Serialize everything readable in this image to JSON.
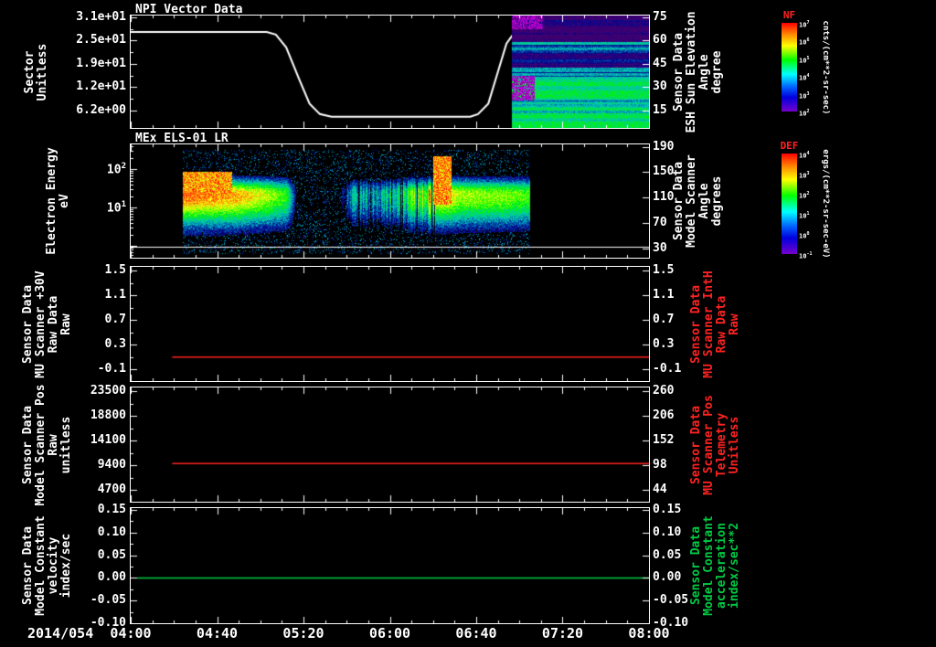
{
  "x_axis": {
    "date_label": "2014/054",
    "tick_labels": [
      "04:00",
      "04:40",
      "05:20",
      "06:00",
      "06:40",
      "07:20",
      "08:00"
    ],
    "range_hours": [
      4.0,
      8.0
    ]
  },
  "colorbars": [
    {
      "name": "NF",
      "title_color": "#ff2222",
      "units": "cnts/(cm**2-sr-sec)",
      "tick_labels": [
        "10^7",
        "10^6",
        "10^5",
        "10^4",
        "10^3",
        "10^2"
      ]
    },
    {
      "name": "DEF",
      "title_color": "#ff2222",
      "units": "ergs/(cm**2-sr-sec-eV)",
      "tick_labels": [
        "10^4",
        "10^3",
        "10^2",
        "10^1",
        "10^0",
        "10^-1"
      ]
    }
  ],
  "chart_data": [
    {
      "id": "npi-sector",
      "type": "line+spectrogram",
      "title": "NPI Vector Data",
      "left_label": [
        "Sector",
        "Unitless"
      ],
      "left_axis": {
        "range": [
          1.5,
          31.5
        ],
        "ticks": [
          {
            "v": 31.0,
            "label": "3.1e+01"
          },
          {
            "v": 24.8,
            "label": "2.5e+01"
          },
          {
            "v": 18.6,
            "label": "1.9e+01"
          },
          {
            "v": 12.4,
            "label": "1.2e+01"
          },
          {
            "v": 6.2,
            "label": "6.2e+00"
          }
        ]
      },
      "right_label": [
        "Sensor Data",
        "ESH Sun Elevation",
        "Angle",
        "degree"
      ],
      "right_label_color": "#ffffff",
      "right_axis": {
        "range": [
          3.6,
          76.2
        ],
        "ticks": [
          {
            "v": 75,
            "label": "75"
          },
          {
            "v": 60,
            "label": "60"
          },
          {
            "v": 45,
            "label": "45"
          },
          {
            "v": 30,
            "label": "30"
          },
          {
            "v": 15,
            "label": "15"
          }
        ]
      },
      "line": {
        "color": "#ffffff",
        "points": [
          [
            4.0,
            27.1
          ],
          [
            5.05,
            27.1
          ],
          [
            5.12,
            26.4
          ],
          [
            5.2,
            23.0
          ],
          [
            5.3,
            14.5
          ],
          [
            5.38,
            8.0
          ],
          [
            5.46,
            5.2
          ],
          [
            5.55,
            4.5
          ],
          [
            6.62,
            4.5
          ],
          [
            6.68,
            5.2
          ],
          [
            6.76,
            8.0
          ],
          [
            6.83,
            16.0
          ],
          [
            6.9,
            24.0
          ],
          [
            6.95,
            26.4
          ],
          [
            7.0,
            27.1
          ],
          [
            8.0,
            27.1
          ]
        ]
      },
      "spectrogram": {
        "style": "npi",
        "t0": 6.94,
        "t1": 8.0,
        "seed": 7
      }
    },
    {
      "id": "els-spectrogram",
      "type": "spectrogram",
      "title": "MEx ELS-01 LR",
      "left_label": [
        "Electron Energy",
        "eV"
      ],
      "left_axis": {
        "log": true,
        "range": [
          -0.3,
          2.65
        ],
        "ticks": [
          {
            "v": 2,
            "label": "10^2"
          },
          {
            "v": 1,
            "label": "10^1"
          }
        ]
      },
      "right_label": [
        "Sensor Data",
        "Model Scanner",
        "Angle",
        "degrees"
      ],
      "right_label_color": "#ffffff",
      "right_axis": {
        "range": [
          15.8,
          193.6
        ],
        "ticks": [
          {
            "v": 190,
            "label": "190"
          },
          {
            "v": 150,
            "label": "150"
          },
          {
            "v": 110,
            "label": "110"
          },
          {
            "v": 70,
            "label": "70"
          },
          {
            "v": 30,
            "label": "30"
          }
        ]
      },
      "hline": {
        "logv": -0.013,
        "color": "#ffffff"
      },
      "spectrogram": {
        "style": "els",
        "t0": 4.4,
        "t1": 7.08,
        "seed": 3,
        "band_center": 1.35,
        "band_strength": [
          [
            4.4,
            0.95
          ],
          [
            5.0,
            0.9
          ],
          [
            5.2,
            0.75
          ],
          [
            5.27,
            0.18
          ],
          [
            5.6,
            0.15
          ],
          [
            5.72,
            0.45
          ],
          [
            5.95,
            0.5
          ],
          [
            6.1,
            0.65
          ],
          [
            6.25,
            0.85
          ],
          [
            6.4,
            1.0
          ],
          [
            6.55,
            0.85
          ],
          [
            6.9,
            0.85
          ],
          [
            7.08,
            0.8
          ]
        ],
        "core": [
          [
            4.4,
            0.97
          ],
          [
            4.8,
            0.95
          ],
          [
            5.0,
            0.85
          ],
          [
            5.3,
            0.75
          ],
          [
            6.0,
            0.75
          ],
          [
            6.3,
            0.8
          ],
          [
            6.45,
            0.85
          ],
          [
            7.08,
            0.78
          ]
        ],
        "blobs": [
          {
            "t0": 4.4,
            "t1": 4.78,
            "l0": 1.35,
            "l1": 1.95,
            "v": 0.97
          },
          {
            "t0": 6.33,
            "t1": 6.47,
            "l0": 1.1,
            "l1": 2.35,
            "v": 0.98
          }
        ]
      }
    },
    {
      "id": "mu-scanner-30v",
      "type": "line",
      "left_label": [
        "Sensor Data",
        "MU Scanner +30V",
        "Raw Data",
        "Raw"
      ],
      "left_axis": {
        "range": [
          -0.29,
          1.56
        ],
        "ticks": [
          {
            "v": 1.5,
            "label": "1.5"
          },
          {
            "v": 1.1,
            "label": "1.1"
          },
          {
            "v": 0.7,
            "label": "0.7"
          },
          {
            "v": 0.3,
            "label": "0.3"
          },
          {
            "v": -0.1,
            "label": "-0.1"
          }
        ]
      },
      "right_label": [
        "Sensor Data",
        "MU Scanner IntH",
        "Raw Data",
        "Raw"
      ],
      "right_label_color": "#ff2222",
      "right_axis": {
        "range": [
          -0.29,
          1.56
        ],
        "ticks": [
          {
            "v": 1.5,
            "label": "1.5"
          },
          {
            "v": 1.1,
            "label": "1.1"
          },
          {
            "v": 0.7,
            "label": "0.7"
          },
          {
            "v": 0.3,
            "label": "0.3"
          },
          {
            "v": -0.1,
            "label": "-0.1"
          }
        ]
      },
      "line": {
        "color": "#ff2222",
        "points": [
          [
            4.32,
            0.1
          ],
          [
            8.0,
            0.1
          ]
        ]
      }
    },
    {
      "id": "model-scanner-pos",
      "type": "line",
      "left_label": [
        "Sensor Data",
        "Model Scanner Pos",
        "Raw",
        "unitless"
      ],
      "left_axis": {
        "range": [
          2440,
          24200
        ],
        "ticks": [
          {
            "v": 23500,
            "label": "23500"
          },
          {
            "v": 18800,
            "label": "18800"
          },
          {
            "v": 14100,
            "label": "14100"
          },
          {
            "v": 9400,
            "label": "9400"
          },
          {
            "v": 4700,
            "label": "4700"
          }
        ]
      },
      "right_label": [
        "Sensor Data",
        "MU Scanner Pos",
        "Telemetry",
        "Unitless"
      ],
      "right_label_color": "#ff2222",
      "right_axis": {
        "range": [
          18,
          268
        ],
        "ticks": [
          {
            "v": 260,
            "label": "260"
          },
          {
            "v": 206,
            "label": "206"
          },
          {
            "v": 152,
            "label": "152"
          },
          {
            "v": 98,
            "label": "98"
          },
          {
            "v": 44,
            "label": "44"
          }
        ]
      },
      "line": {
        "color": "#ff2222",
        "points": [
          [
            4.32,
            9700
          ],
          [
            8.0,
            9700
          ]
        ]
      }
    },
    {
      "id": "model-constant-velocity",
      "type": "line",
      "left_label": [
        "Sensor Data",
        "Model Constant",
        "velocity",
        "index/sec"
      ],
      "left_axis": {
        "range": [
          -0.1,
          0.154
        ],
        "ticks": [
          {
            "v": 0.15,
            "label": "0.15"
          },
          {
            "v": 0.1,
            "label": "0.10"
          },
          {
            "v": 0.05,
            "label": "0.05"
          },
          {
            "v": 0.0,
            "label": "0.00"
          },
          {
            "v": -0.05,
            "label": "-0.05"
          },
          {
            "v": -0.1,
            "label": "-0.10"
          }
        ]
      },
      "right_label": [
        "Sensor Data",
        "Model Constant",
        "acceleration",
        "index/sec**2"
      ],
      "right_label_color": "#00cc44",
      "right_axis": {
        "range": [
          -0.1,
          0.154
        ],
        "ticks": [
          {
            "v": 0.15,
            "label": "0.15"
          },
          {
            "v": 0.1,
            "label": "0.10"
          },
          {
            "v": 0.05,
            "label": "0.05"
          },
          {
            "v": 0.0,
            "label": "0.00"
          },
          {
            "v": -0.05,
            "label": "-0.05"
          },
          {
            "v": -0.1,
            "label": "-0.10"
          }
        ]
      },
      "line": {
        "color": "#00cc44",
        "points": [
          [
            4.05,
            0.0
          ],
          [
            8.0,
            0.0
          ]
        ]
      }
    }
  ]
}
